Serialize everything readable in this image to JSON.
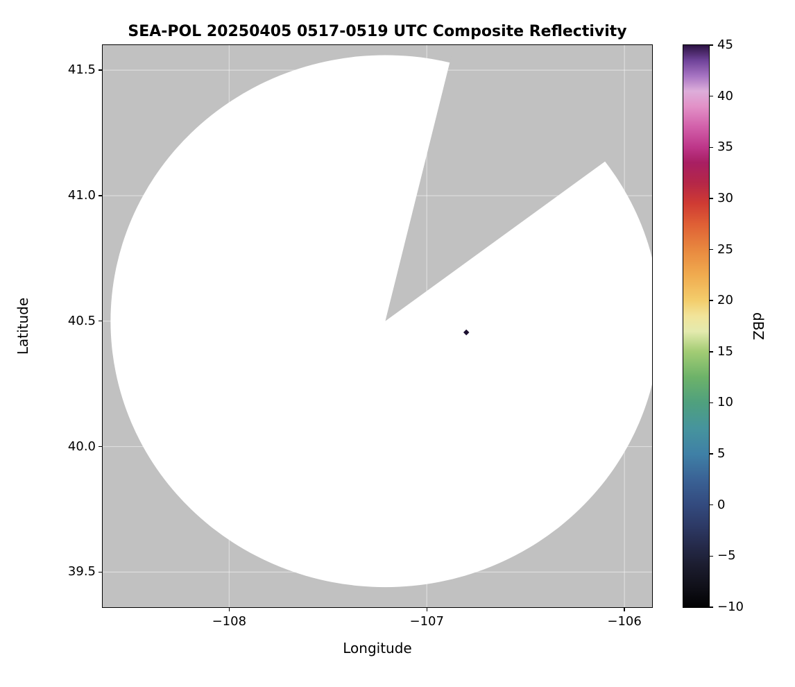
{
  "chart_data": {
    "type": "heatmap",
    "title": "SEA-POL 20250405 0517-0519 UTC Composite Reflectivity",
    "xlabel": "Longitude",
    "ylabel": "Latitude",
    "xlim": [
      -108.64,
      -105.86
    ],
    "ylim": [
      39.36,
      41.6
    ],
    "grid": true,
    "grid_color": "rgba(255,255,255,0.45)",
    "xticks": [
      {
        "value": -108,
        "label": "−108"
      },
      {
        "value": -107,
        "label": "−107"
      },
      {
        "value": -106,
        "label": "−106"
      }
    ],
    "yticks": [
      {
        "value": 41.5,
        "label": "41.5"
      },
      {
        "value": 41.0,
        "label": "41.0"
      },
      {
        "value": 40.5,
        "label": "40.5"
      },
      {
        "value": 40.0,
        "label": "40.0"
      },
      {
        "value": 39.5,
        "label": "39.5"
      }
    ],
    "radar": {
      "center_lon": -107.21,
      "center_lat": 40.5,
      "radius_lon_deg": 1.39,
      "radius_lat_deg": 1.06,
      "blanked_sector_azimuth_deg": [
        14,
        54
      ],
      "coverage_color": "#ffffff",
      "nodata_color": "#c1c1c1"
    },
    "echoes": [
      {
        "lon": -106.8,
        "lat": 40.455,
        "dbz": 44,
        "color": "#1c1030"
      }
    ],
    "colorbar": {
      "label": "dBZ",
      "min": -10,
      "max": 45,
      "ticks": [
        {
          "value": 45,
          "label": "45"
        },
        {
          "value": 40,
          "label": "40"
        },
        {
          "value": 35,
          "label": "35"
        },
        {
          "value": 30,
          "label": "30"
        },
        {
          "value": 25,
          "label": "25"
        },
        {
          "value": 20,
          "label": "20"
        },
        {
          "value": 15,
          "label": "15"
        },
        {
          "value": 10,
          "label": "10"
        },
        {
          "value": 5,
          "label": "5"
        },
        {
          "value": 0,
          "label": "0"
        },
        {
          "value": -5,
          "label": "−5"
        },
        {
          "value": -10,
          "label": "−10"
        }
      ],
      "stops": [
        {
          "value": -10,
          "color": "#020203"
        },
        {
          "value": -8,
          "color": "#101019"
        },
        {
          "value": -6,
          "color": "#1b1c2e"
        },
        {
          "value": -4,
          "color": "#252a4a"
        },
        {
          "value": -2,
          "color": "#2d3a66"
        },
        {
          "value": 0,
          "color": "#334a7e"
        },
        {
          "value": 2.5,
          "color": "#3a6295"
        },
        {
          "value": 5,
          "color": "#3f80a6"
        },
        {
          "value": 7.5,
          "color": "#46949d"
        },
        {
          "value": 10,
          "color": "#4fa07e"
        },
        {
          "value": 12.5,
          "color": "#6db269"
        },
        {
          "value": 15,
          "color": "#a2cc74"
        },
        {
          "value": 17,
          "color": "#e4eaae"
        },
        {
          "value": 18.5,
          "color": "#f2e49a"
        },
        {
          "value": 20,
          "color": "#f3cd6c"
        },
        {
          "value": 22.5,
          "color": "#f0ab4f"
        },
        {
          "value": 25,
          "color": "#e8883f"
        },
        {
          "value": 27.5,
          "color": "#df5f35"
        },
        {
          "value": 29.5,
          "color": "#cf3b33"
        },
        {
          "value": 31.5,
          "color": "#b52748"
        },
        {
          "value": 33.5,
          "color": "#a81f63"
        },
        {
          "value": 35,
          "color": "#bd3689"
        },
        {
          "value": 37,
          "color": "#d260aa"
        },
        {
          "value": 39,
          "color": "#e291c7"
        },
        {
          "value": 40.5,
          "color": "#ddaeda"
        },
        {
          "value": 42,
          "color": "#a673c2"
        },
        {
          "value": 43.5,
          "color": "#6f4399"
        },
        {
          "value": 45,
          "color": "#2c1342"
        }
      ]
    }
  }
}
